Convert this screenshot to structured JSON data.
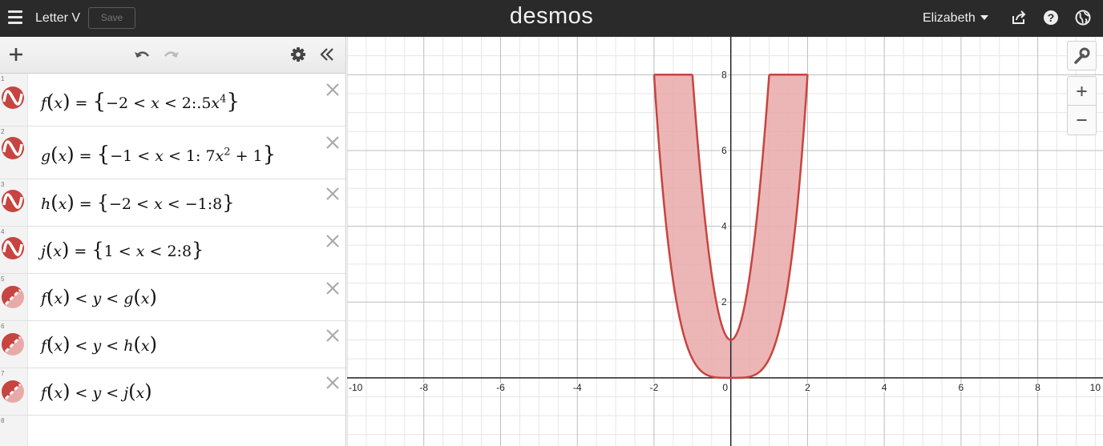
{
  "header": {
    "doc_title": "Letter V",
    "save_label": "Save",
    "logo": "desmos",
    "user_name": "Elizabeth",
    "icons": [
      "menu-icon",
      "share-icon",
      "help-icon",
      "globe-icon"
    ]
  },
  "toolbar": {
    "icons": [
      "add-icon",
      "undo-icon",
      "redo-icon",
      "settings-icon",
      "collapse-icon"
    ]
  },
  "expressions": [
    {
      "number": "1",
      "type": "function",
      "latex": "f(x) = {−2 < x < 2: .5x^4}"
    },
    {
      "number": "2",
      "type": "function",
      "latex": "g(x) = {−1 < x < 1: 7x^2 + 1}"
    },
    {
      "number": "3",
      "type": "function",
      "latex": "h(x) = {−2 < x < −1: 8}"
    },
    {
      "number": "4",
      "type": "function",
      "latex": "j(x) = {1 < x < 2: 8}"
    },
    {
      "number": "5",
      "type": "inequality",
      "latex": "f(x) < y < g(x)"
    },
    {
      "number": "6",
      "type": "inequality",
      "latex": "f(x) < y < h(x)"
    },
    {
      "number": "7",
      "type": "inequality",
      "latex": "f(x) < y < j(x)"
    },
    {
      "number": "8",
      "type": "empty",
      "latex": ""
    }
  ],
  "graph": {
    "xlim": [
      -10.0,
      9.7
    ],
    "ylim": [
      -1.8,
      9.0
    ],
    "x_ticks": [
      -10,
      -8,
      -6,
      -4,
      -2,
      0,
      2,
      4,
      6,
      8,
      10
    ],
    "y_ticks": [
      2,
      4,
      6,
      8
    ],
    "x_tick_labels": [
      "-10",
      "-8",
      "-6",
      "-4",
      "-2",
      "0",
      "2",
      "4",
      "6",
      "8",
      "10"
    ],
    "y_tick_labels": [
      "2",
      "4",
      "6",
      "8"
    ],
    "curve_color": "#c74440",
    "fill_color": "#e8a9a8"
  }
}
